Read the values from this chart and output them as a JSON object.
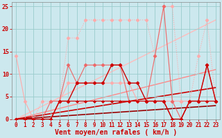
{
  "background_color": "#cce8ee",
  "grid_color": "#99cccc",
  "xlabel": "Vent moyen/en rafales ( km/h )",
  "xlabel_color": "#cc0000",
  "xlabel_fontsize": 7,
  "tick_color": "#cc0000",
  "tick_fontsize": 5.5,
  "xlim": [
    -0.5,
    23.5
  ],
  "ylim": [
    0,
    26
  ],
  "yticks": [
    0,
    5,
    10,
    15,
    20,
    25
  ],
  "xticks": [
    0,
    1,
    2,
    3,
    4,
    5,
    6,
    7,
    8,
    9,
    10,
    11,
    12,
    13,
    14,
    15,
    16,
    17,
    18,
    19,
    20,
    21,
    22,
    23
  ],
  "lines": [
    {
      "x": [
        0,
        1,
        2,
        3,
        4,
        5,
        6,
        7,
        8,
        9,
        10,
        11,
        12,
        13,
        14,
        15,
        16,
        17,
        18,
        19,
        20,
        21,
        22,
        23
      ],
      "y": [
        0,
        0,
        0,
        4,
        4,
        4,
        18,
        18,
        22,
        22,
        22,
        22,
        22,
        22,
        22,
        22,
        14,
        25,
        25,
        4,
        4,
        14,
        22,
        4
      ],
      "color": "#ffaaaa",
      "linewidth": 0.8,
      "linestyle": "dotted",
      "marker": "D",
      "markersize": 2.5,
      "zorder": 2
    },
    {
      "x": [
        0,
        1,
        2,
        3,
        4,
        5,
        6,
        7,
        8,
        9,
        10,
        11,
        12,
        13,
        14,
        15,
        16,
        17,
        18,
        19,
        20,
        21,
        22,
        23
      ],
      "y": [
        14,
        4,
        0,
        0,
        0,
        4,
        8,
        8,
        8,
        8,
        8,
        8,
        8,
        8,
        4,
        4,
        4,
        4,
        4,
        4,
        4,
        4,
        4,
        4
      ],
      "color": "#ffaaaa",
      "linewidth": 0.8,
      "linestyle": "solid",
      "marker": "D",
      "markersize": 2.5,
      "zorder": 2
    },
    {
      "x": [
        0,
        1,
        2,
        3,
        4,
        5,
        6,
        7,
        8,
        9,
        10,
        11,
        12,
        13,
        14,
        15,
        16,
        17,
        18,
        19,
        20,
        21,
        22,
        23
      ],
      "y": [
        0,
        0,
        0,
        0,
        4,
        4,
        12,
        8,
        12,
        12,
        12,
        12,
        12,
        4,
        4,
        4,
        14,
        25,
        4,
        0,
        4,
        4,
        12,
        4
      ],
      "color": "#ee6666",
      "linewidth": 0.8,
      "linestyle": "solid",
      "marker": "D",
      "markersize": 2.5,
      "zorder": 3
    },
    {
      "x": [
        0,
        1,
        2,
        3,
        4,
        5,
        6,
        7,
        8,
        9,
        10,
        11,
        12,
        13,
        14,
        15,
        16,
        17,
        18,
        19,
        20,
        21,
        22,
        23
      ],
      "y": [
        0,
        0,
        0,
        0,
        0,
        4,
        4,
        8,
        8,
        8,
        8,
        12,
        12,
        8,
        8,
        4,
        4,
        4,
        0,
        0,
        4,
        4,
        12,
        4
      ],
      "color": "#cc0000",
      "linewidth": 1.0,
      "linestyle": "solid",
      "marker": "D",
      "markersize": 2.5,
      "zorder": 4
    },
    {
      "x": [
        0,
        1,
        2,
        3,
        4,
        5,
        6,
        7,
        8,
        9,
        10,
        11,
        12,
        13,
        14,
        15,
        16,
        17,
        18,
        19,
        20,
        21,
        22,
        23
      ],
      "y": [
        0,
        0,
        0,
        0,
        0,
        4,
        4,
        4,
        4,
        4,
        4,
        4,
        4,
        4,
        4,
        4,
        4,
        4,
        0,
        0,
        4,
        4,
        4,
        4
      ],
      "color": "#cc0000",
      "linewidth": 0.8,
      "linestyle": "solid",
      "marker": "D",
      "markersize": 2.0,
      "zorder": 4
    },
    {
      "x": [
        0,
        23
      ],
      "y": [
        0,
        22
      ],
      "color": "#ffbbbb",
      "linewidth": 1.0,
      "linestyle": "solid",
      "marker": null,
      "markersize": 0,
      "zorder": 1
    },
    {
      "x": [
        0,
        23
      ],
      "y": [
        0,
        11
      ],
      "color": "#ff8888",
      "linewidth": 1.0,
      "linestyle": "solid",
      "marker": null,
      "markersize": 0,
      "zorder": 1
    },
    {
      "x": [
        0,
        23
      ],
      "y": [
        0,
        7
      ],
      "color": "#cc0000",
      "linewidth": 1.2,
      "linestyle": "solid",
      "marker": null,
      "markersize": 0,
      "zorder": 1
    },
    {
      "x": [
        0,
        23
      ],
      "y": [
        0,
        3
      ],
      "color": "#990000",
      "linewidth": 1.2,
      "linestyle": "solid",
      "marker": null,
      "markersize": 0,
      "zorder": 1
    }
  ]
}
